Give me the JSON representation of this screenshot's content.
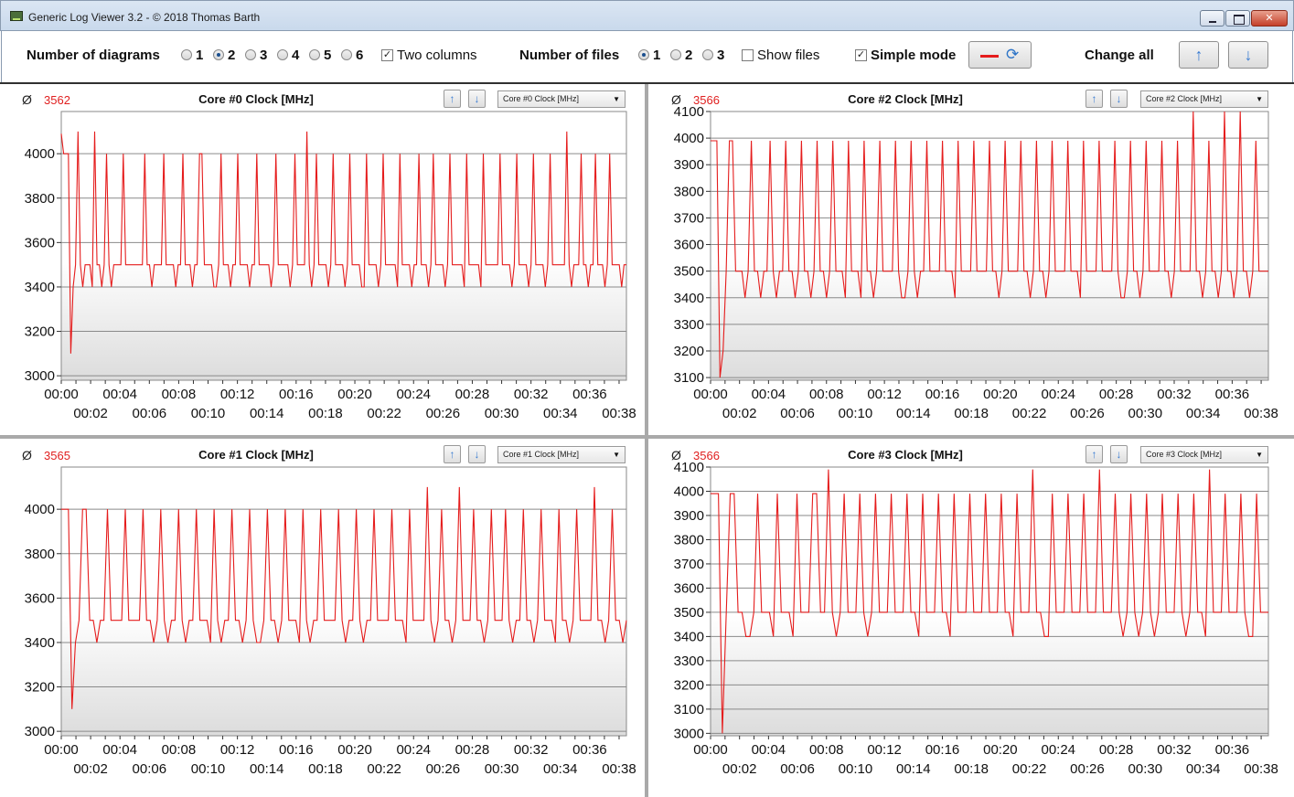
{
  "window": {
    "title": "Generic Log Viewer 3.2 - © 2018 Thomas Barth",
    "minimize_icon": "minimize-icon",
    "maximize_icon": "maximize-icon",
    "close_glyph": "✕"
  },
  "toolbar": {
    "num_diagrams_label": "Number of diagrams",
    "diagram_options": [
      "1",
      "2",
      "3",
      "4",
      "5",
      "6"
    ],
    "diagram_selected": "2",
    "two_columns_label": "Two columns",
    "two_columns_checked": true,
    "num_files_label": "Number of files",
    "file_options": [
      "1",
      "2",
      "3"
    ],
    "file_selected": "1",
    "show_files_label": "Show files",
    "show_files_checked": false,
    "simple_mode_label": "Simple mode",
    "simple_mode_checked": true,
    "change_all_label": "Change all",
    "check_glyph": "✓",
    "up_glyph": "🡅",
    "down_glyph": "🡇"
  },
  "colors": {
    "series": "#e51c1c",
    "avg_value": "#e02020",
    "grid": "#8a8a8a",
    "plot_bg_top": "#ffffff",
    "plot_bg_bottom": "#dcdcdc"
  },
  "panels": [
    {
      "avg_symbol": "Ø",
      "avg_value": "3562",
      "title": "Core #0 Clock [MHz]",
      "select_value": "Core #0 Clock [MHz]",
      "select_arrow": "▼"
    },
    {
      "avg_symbol": "Ø",
      "avg_value": "3566",
      "title": "Core #2 Clock [MHz]",
      "select_value": "Core #2 Clock [MHz]",
      "select_arrow": "▼"
    },
    {
      "avg_symbol": "Ø",
      "avg_value": "3565",
      "title": "Core #1 Clock [MHz]",
      "select_value": "Core #1 Clock [MHz]",
      "select_arrow": "▼"
    },
    {
      "avg_symbol": "Ø",
      "avg_value": "3566",
      "title": "Core #3 Clock [MHz]",
      "select_value": "Core #3 Clock [MHz]",
      "select_arrow": "▼"
    }
  ],
  "chart_data": [
    {
      "type": "line",
      "title": "Core #0 Clock [MHz]",
      "x_ticks_top": [
        "00:00",
        "00:04",
        "00:08",
        "00:12",
        "00:16",
        "00:20",
        "00:24",
        "00:28",
        "00:32",
        "00:36"
      ],
      "x_ticks_bottom": [
        "00:02",
        "00:06",
        "00:10",
        "00:14",
        "00:18",
        "00:22",
        "00:26",
        "00:30",
        "00:34",
        "00:38"
      ],
      "y_ticks": [
        3000,
        3200,
        3400,
        3600,
        3800,
        4000
      ],
      "ylim": [
        2980,
        4190
      ],
      "xlim": [
        0,
        38.5
      ],
      "series": [
        {
          "values": [
            4090,
            4000,
            4000,
            4000,
            3100,
            3400,
            3500,
            4100,
            3500,
            3400,
            3500,
            3500,
            3500,
            3400,
            4100,
            3500,
            3500,
            3400,
            3500,
            4000,
            3500,
            3400,
            3500,
            3500,
            3500,
            3500,
            4000,
            3500,
            3500,
            3500,
            3500,
            3500,
            3500,
            3500,
            3500,
            4000,
            3500,
            3500,
            3400,
            3500,
            3500,
            3500,
            3500,
            4000,
            3500,
            3500,
            3500,
            3500,
            3400,
            3500,
            3500,
            4000,
            3500,
            3500,
            3500,
            3400,
            3500,
            3500,
            4000,
            4000,
            3500,
            3500,
            3500,
            3500,
            3400,
            3400,
            3500,
            4000,
            3500,
            3500,
            3500,
            3400,
            3500,
            3500,
            4000,
            3500,
            3500,
            3500,
            3500,
            3400,
            3500,
            3500,
            4000,
            3500,
            3500,
            3500,
            3500,
            3500,
            3400,
            3500,
            4000,
            3500,
            3500,
            3500,
            3500,
            3500,
            3400,
            3500,
            4000,
            3500,
            3500,
            3500,
            3500,
            4100,
            3500,
            3400,
            3500,
            4000,
            3500,
            3500,
            3500,
            3500,
            3400,
            3500,
            4000,
            3500,
            3500,
            3500,
            3500,
            3400,
            3500,
            4000,
            3500,
            3500,
            3500,
            3500,
            3400,
            3400,
            4000,
            3500,
            3500,
            3500,
            3500,
            3400,
            3500,
            4000,
            3500,
            3500,
            3500,
            3500,
            3500,
            3400,
            4000,
            3500,
            3500,
            3500,
            3500,
            3400,
            3500,
            3500,
            4000,
            3500,
            3500,
            3500,
            3400,
            3500,
            4000,
            3500,
            3500,
            3500,
            3500,
            3400,
            3500,
            4000,
            3500,
            3500,
            3500,
            3500,
            3500,
            3400,
            4000,
            3500,
            3500,
            3500,
            3500,
            3500,
            3400,
            4000,
            3500,
            3500,
            3500,
            3500,
            3500,
            3500,
            4000,
            3500,
            3500,
            3500,
            3500,
            3400,
            3500,
            4000,
            3500,
            3500,
            3500,
            3500,
            3400,
            3500,
            4000,
            3500,
            3500,
            3500,
            3500,
            3400,
            3500,
            4000,
            3500,
            3500,
            3500,
            3500,
            3500,
            3500,
            4100,
            3500,
            3400,
            3500,
            3500,
            3500,
            4000,
            3500,
            3500,
            3400,
            3500,
            3500,
            4000,
            3500,
            3500,
            3500,
            3400,
            3500,
            4000,
            3500,
            3500,
            3500,
            3500,
            3400,
            3500,
            3500
          ]
        }
      ]
    },
    {
      "type": "line",
      "title": "Core #2 Clock [MHz]",
      "x_ticks_top": [
        "00:00",
        "00:04",
        "00:08",
        "00:12",
        "00:16",
        "00:20",
        "00:24",
        "00:28",
        "00:32",
        "00:36"
      ],
      "x_ticks_bottom": [
        "00:02",
        "00:06",
        "00:10",
        "00:14",
        "00:18",
        "00:22",
        "00:26",
        "00:30",
        "00:34",
        "00:38"
      ],
      "y_ticks": [
        3100,
        3200,
        3300,
        3400,
        3500,
        3600,
        3700,
        3800,
        3900,
        4000,
        4100
      ],
      "ylim": [
        3090,
        4100
      ],
      "xlim": [
        0,
        38.5
      ],
      "series": [
        {
          "values": [
            3990,
            3990,
            3990,
            3100,
            3200,
            3500,
            3990,
            3990,
            3500,
            3500,
            3500,
            3400,
            3500,
            3990,
            3500,
            3500,
            3400,
            3500,
            3500,
            3990,
            3500,
            3400,
            3500,
            3500,
            3990,
            3500,
            3500,
            3400,
            3500,
            3990,
            3500,
            3500,
            3400,
            3500,
            3990,
            3500,
            3500,
            3400,
            3500,
            3990,
            3500,
            3500,
            3500,
            3400,
            3990,
            3500,
            3500,
            3500,
            3400,
            3990,
            3500,
            3500,
            3400,
            3500,
            3990,
            3500,
            3500,
            3500,
            3500,
            3990,
            3500,
            3400,
            3400,
            3500,
            3990,
            3500,
            3400,
            3500,
            3500,
            3990,
            3500,
            3500,
            3500,
            3500,
            3990,
            3500,
            3500,
            3500,
            3400,
            3990,
            3500,
            3500,
            3500,
            3500,
            3990,
            3500,
            3500,
            3500,
            3500,
            3990,
            3500,
            3500,
            3400,
            3500,
            3990,
            3500,
            3500,
            3500,
            3500,
            3990,
            3500,
            3500,
            3400,
            3500,
            3990,
            3500,
            3500,
            3400,
            3500,
            3990,
            3500,
            3500,
            3500,
            3500,
            3990,
            3500,
            3500,
            3500,
            3400,
            3990,
            3500,
            3500,
            3500,
            3500,
            3990,
            3500,
            3500,
            3500,
            3500,
            3990,
            3500,
            3400,
            3400,
            3500,
            3990,
            3500,
            3500,
            3400,
            3500,
            3990,
            3500,
            3500,
            3500,
            3500,
            3990,
            3500,
            3500,
            3400,
            3500,
            3990,
            3500,
            3500,
            3500,
            3500,
            4100,
            3500,
            3500,
            3400,
            3500,
            3990,
            3500,
            3500,
            3400,
            3500,
            4100,
            3500,
            3500,
            3400,
            3500,
            4100,
            3500,
            3500,
            3400,
            3500,
            3990,
            3500,
            3500,
            3500,
            3500
          ]
        }
      ]
    },
    {
      "type": "line",
      "title": "Core #1 Clock [MHz]",
      "x_ticks_top": [
        "00:00",
        "00:04",
        "00:08",
        "00:12",
        "00:16",
        "00:20",
        "00:24",
        "00:28",
        "00:32",
        "00:36"
      ],
      "x_ticks_bottom": [
        "00:02",
        "00:06",
        "00:10",
        "00:14",
        "00:18",
        "00:22",
        "00:26",
        "00:30",
        "00:34",
        "00:38"
      ],
      "y_ticks": [
        3000,
        3200,
        3400,
        3600,
        3800,
        4000
      ],
      "ylim": [
        2980,
        4190
      ],
      "xlim": [
        0,
        38.5
      ],
      "series": [
        {
          "values": [
            4000,
            4000,
            4000,
            3100,
            3400,
            3500,
            4000,
            4000,
            3500,
            3500,
            3400,
            3500,
            3500,
            4000,
            3500,
            3500,
            3500,
            3500,
            4000,
            3500,
            3500,
            3500,
            3500,
            4000,
            3500,
            3500,
            3400,
            3500,
            4000,
            3500,
            3400,
            3500,
            3500,
            4000,
            3500,
            3400,
            3500,
            3500,
            4000,
            3500,
            3500,
            3500,
            3400,
            4000,
            3500,
            3400,
            3500,
            3500,
            4000,
            3500,
            3500,
            3400,
            3500,
            4000,
            3500,
            3400,
            3400,
            3500,
            4000,
            3500,
            3500,
            3400,
            3500,
            4000,
            3500,
            3500,
            3500,
            3400,
            4000,
            3500,
            3400,
            3500,
            3500,
            4000,
            3500,
            3500,
            3500,
            3500,
            4000,
            3500,
            3400,
            3500,
            3500,
            4000,
            3500,
            3400,
            3500,
            3500,
            4000,
            3500,
            3500,
            3500,
            3500,
            4000,
            3500,
            3500,
            3500,
            3400,
            4000,
            3500,
            3500,
            3500,
            3500,
            4100,
            3500,
            3400,
            3500,
            4000,
            3500,
            3500,
            3400,
            3500,
            4100,
            3500,
            3500,
            3500,
            4000,
            3500,
            3500,
            3400,
            3500,
            4000,
            3500,
            3500,
            3500,
            4000,
            3500,
            3400,
            3500,
            3500,
            4000,
            3500,
            3500,
            3400,
            3500,
            4000,
            3500,
            3500,
            3500,
            3400,
            4000,
            3500,
            3500,
            3400,
            3500,
            4000,
            3500,
            3500,
            3500,
            3500,
            4100,
            3500,
            3500,
            3400,
            3500,
            4000,
            3500,
            3500,
            3400,
            3500
          ]
        }
      ]
    },
    {
      "type": "line",
      "title": "Core #3 Clock [MHz]",
      "x_ticks_top": [
        "00:00",
        "00:04",
        "00:08",
        "00:12",
        "00:16",
        "00:20",
        "00:24",
        "00:28",
        "00:32",
        "00:36"
      ],
      "x_ticks_bottom": [
        "00:02",
        "00:06",
        "00:10",
        "00:14",
        "00:18",
        "00:22",
        "00:26",
        "00:30",
        "00:34",
        "00:38"
      ],
      "y_ticks": [
        3000,
        3100,
        3200,
        3300,
        3400,
        3500,
        3600,
        3700,
        3800,
        3900,
        4000,
        4100
      ],
      "ylim": [
        2990,
        4100
      ],
      "xlim": [
        0,
        38.5
      ],
      "series": [
        {
          "values": [
            3990,
            3990,
            3990,
            3000,
            3500,
            3990,
            3990,
            3500,
            3500,
            3400,
            3400,
            3500,
            3990,
            3500,
            3500,
            3500,
            3400,
            3990,
            3500,
            3500,
            3500,
            3400,
            3990,
            3500,
            3500,
            3500,
            3990,
            3990,
            3500,
            3500,
            4090,
            3500,
            3400,
            3500,
            3990,
            3500,
            3500,
            3500,
            3990,
            3500,
            3400,
            3500,
            3990,
            3500,
            3500,
            3500,
            3990,
            3500,
            3500,
            3500,
            3990,
            3500,
            3500,
            3400,
            3990,
            3500,
            3500,
            3500,
            3990,
            3500,
            3500,
            3400,
            3990,
            3500,
            3500,
            3500,
            3990,
            3500,
            3500,
            3500,
            3990,
            3500,
            3500,
            3500,
            3990,
            3500,
            3500,
            3400,
            3990,
            3500,
            3500,
            3500,
            4090,
            3500,
            3500,
            3400,
            3400,
            3990,
            3500,
            3500,
            3500,
            3990,
            3500,
            3500,
            3500,
            3990,
            3500,
            3500,
            3500,
            4090,
            3500,
            3500,
            3500,
            3990,
            3500,
            3400,
            3500,
            3990,
            3500,
            3400,
            3500,
            3990,
            3500,
            3400,
            3500,
            3990,
            3500,
            3500,
            3500,
            3990,
            3500,
            3400,
            3500,
            3990,
            3500,
            3500,
            3400,
            4090,
            3500,
            3500,
            3500,
            3990,
            3500,
            3500,
            3500,
            3990,
            3500,
            3400,
            3400,
            3990,
            3500,
            3500,
            3500
          ]
        }
      ]
    }
  ]
}
